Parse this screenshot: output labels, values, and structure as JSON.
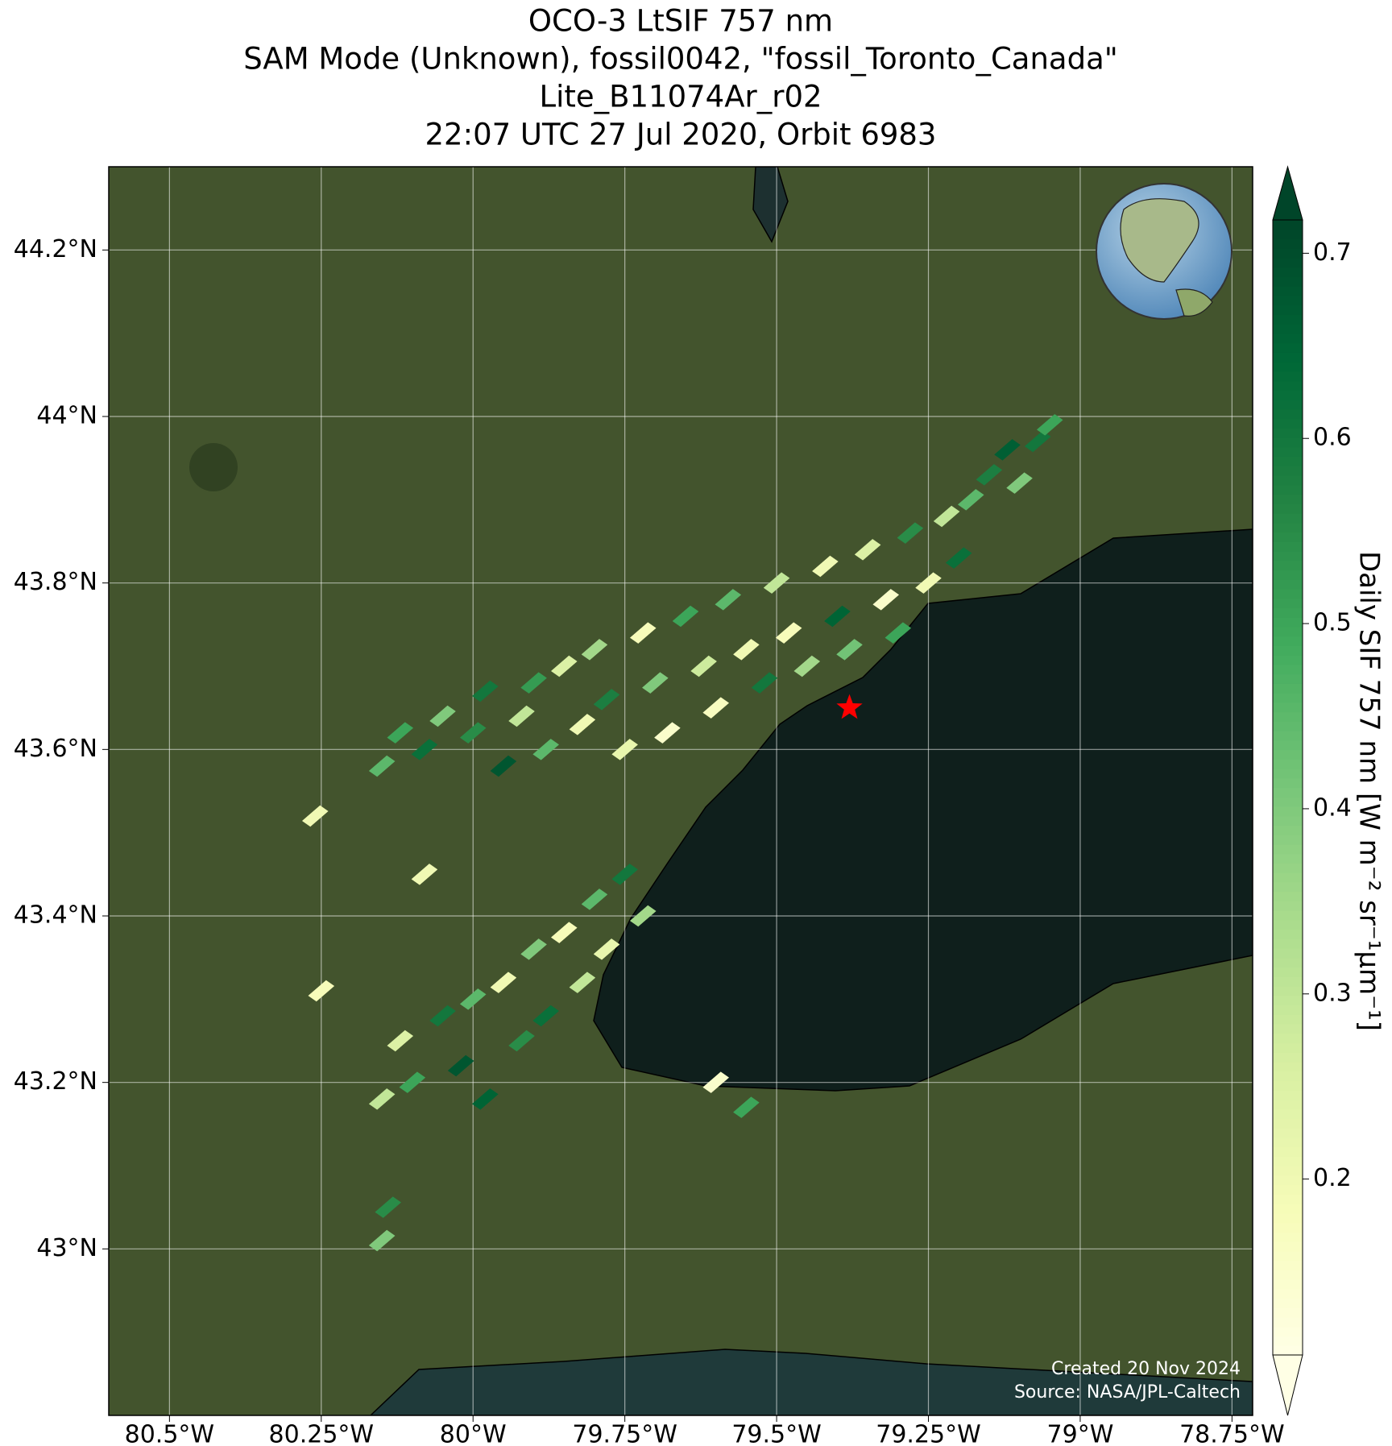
{
  "chart_data": {
    "type": "map",
    "title": [
      "OCO-3 LtSIF 757 nm",
      "SAM Mode (Unknown), fossil0042, \"fossil_Toronto_Canada\"",
      "Lite_B11074Ar_r02",
      "22:07 UTC 27 Jul 2020, Orbit 6983"
    ],
    "xlim": [
      -80.6,
      -78.716
    ],
    "ylim": [
      42.8,
      44.3
    ],
    "xticks": [
      {
        "value": -80.5,
        "label": "80.5°W"
      },
      {
        "value": -80.25,
        "label": "80.25°W"
      },
      {
        "value": -80,
        "label": "80°W"
      },
      {
        "value": -79.75,
        "label": "79.75°W"
      },
      {
        "value": -79.5,
        "label": "79.5°W"
      },
      {
        "value": -79.25,
        "label": "79.25°W"
      },
      {
        "value": -79,
        "label": "79°W"
      },
      {
        "value": -78.75,
        "label": "78.75°W"
      }
    ],
    "yticks": [
      {
        "value": 43,
        "label": "43°N"
      },
      {
        "value": 43.2,
        "label": "43.2°N"
      },
      {
        "value": 43.4,
        "label": "43.4°N"
      },
      {
        "value": 43.6,
        "label": "43.6°N"
      },
      {
        "value": 43.8,
        "label": "43.8°N"
      },
      {
        "value": 44,
        "label": "44°N"
      },
      {
        "value": 44.2,
        "label": "44.2°N"
      }
    ],
    "grid": true,
    "colorbar": {
      "label": "Daily SIF 757 nm [W m⁻² sr⁻¹μm⁻¹]",
      "lim": [
        0.105,
        0.718
      ],
      "ticks": [
        0.2,
        0.3,
        0.4,
        0.5,
        0.6,
        0.7
      ],
      "colormap": [
        "#ffffe5",
        "#f7fcb9",
        "#d9f0a3",
        "#addd8e",
        "#78c679",
        "#41ab5d",
        "#238443",
        "#006837",
        "#004529"
      ]
    },
    "target": [
      -79.38,
      43.65
    ],
    "target_color": "#ff0000",
    "cells": {
      "lon": [
        -80.15,
        -80.12,
        -80.08,
        -80.05,
        -80.0,
        -79.98,
        -79.95,
        -79.92,
        -79.9,
        -79.88,
        -79.85,
        -79.82,
        -79.8,
        -79.78,
        -79.75,
        -79.72,
        -79.7,
        -79.68,
        -79.65,
        -79.62,
        -79.6,
        -79.58,
        -79.55,
        -79.52,
        -79.5,
        -79.48,
        -79.45,
        -79.42,
        -79.4,
        -79.38,
        -79.35,
        -79.32,
        -79.3,
        -79.28,
        -79.25,
        -79.22,
        -79.2,
        -79.18,
        -79.15,
        -79.12,
        -79.1,
        -79.07,
        -79.05,
        -80.15,
        -80.12,
        -80.1,
        -80.05,
        -80.02,
        -80.0,
        -79.98,
        -79.95,
        -79.92,
        -79.9,
        -79.88,
        -79.85,
        -79.82,
        -79.8,
        -79.78,
        -79.75,
        -79.72,
        -80.26,
        -80.08,
        -80.25,
        -80.14,
        -80.15,
        -79.55,
        -79.6
      ],
      "lat": [
        43.58,
        43.62,
        43.6,
        43.64,
        43.62,
        43.67,
        43.58,
        43.64,
        43.68,
        43.6,
        43.7,
        43.63,
        43.72,
        43.66,
        43.6,
        43.74,
        43.68,
        43.62,
        43.76,
        43.7,
        43.65,
        43.78,
        43.72,
        43.68,
        43.8,
        43.74,
        43.7,
        43.82,
        43.76,
        43.72,
        43.84,
        43.78,
        43.74,
        43.86,
        43.8,
        43.88,
        43.83,
        43.9,
        43.93,
        43.96,
        43.92,
        43.97,
        43.99,
        43.18,
        43.25,
        43.2,
        43.28,
        43.22,
        43.3,
        43.18,
        43.32,
        43.25,
        43.36,
        43.28,
        43.38,
        43.32,
        43.42,
        43.36,
        43.45,
        43.4,
        43.52,
        43.45,
        43.31,
        43.05,
        43.01,
        43.17,
        43.2
      ],
      "values": [
        0.45,
        0.5,
        0.62,
        0.4,
        0.55,
        0.6,
        0.68,
        0.3,
        0.52,
        0.45,
        0.25,
        0.2,
        0.35,
        0.58,
        0.22,
        0.18,
        0.4,
        0.15,
        0.5,
        0.28,
        0.17,
        0.45,
        0.2,
        0.6,
        0.3,
        0.18,
        0.35,
        0.2,
        0.65,
        0.42,
        0.25,
        0.15,
        0.5,
        0.55,
        0.2,
        0.3,
        0.62,
        0.45,
        0.58,
        0.66,
        0.4,
        0.6,
        0.5,
        0.3,
        0.25,
        0.5,
        0.6,
        0.68,
        0.45,
        0.65,
        0.2,
        0.55,
        0.4,
        0.62,
        0.18,
        0.3,
        0.45,
        0.22,
        0.6,
        0.35,
        0.2,
        0.2,
        0.18,
        0.55,
        0.4,
        0.5,
        0.15
      ]
    },
    "credits": [
      "Created 20 Nov 2024",
      "Source: NASA/JPL-Caltech"
    ]
  }
}
